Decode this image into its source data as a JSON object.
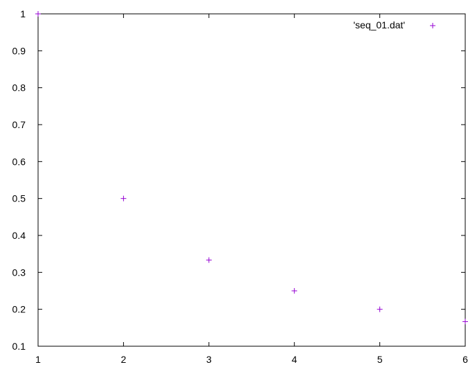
{
  "chart_data": {
    "type": "scatter",
    "title": "",
    "xlabel": "",
    "ylabel": "",
    "xlim": [
      1,
      6
    ],
    "ylim": [
      0.1,
      1
    ],
    "grid": false,
    "legend_position": "top-right",
    "x_ticks": [
      "1",
      "2",
      "3",
      "4",
      "5",
      "6"
    ],
    "y_ticks": [
      "0.1",
      "0.2",
      "0.3",
      "0.4",
      "0.5",
      "0.6",
      "0.7",
      "0.8",
      "0.9",
      "1"
    ],
    "series": [
      {
        "name": "'seq_01.dat'",
        "marker": "plus",
        "color": "#9400d3",
        "x": [
          1,
          2,
          3,
          4,
          5,
          6
        ],
        "y": [
          1,
          0.5,
          0.3333,
          0.25,
          0.2,
          0.1667
        ]
      }
    ]
  }
}
